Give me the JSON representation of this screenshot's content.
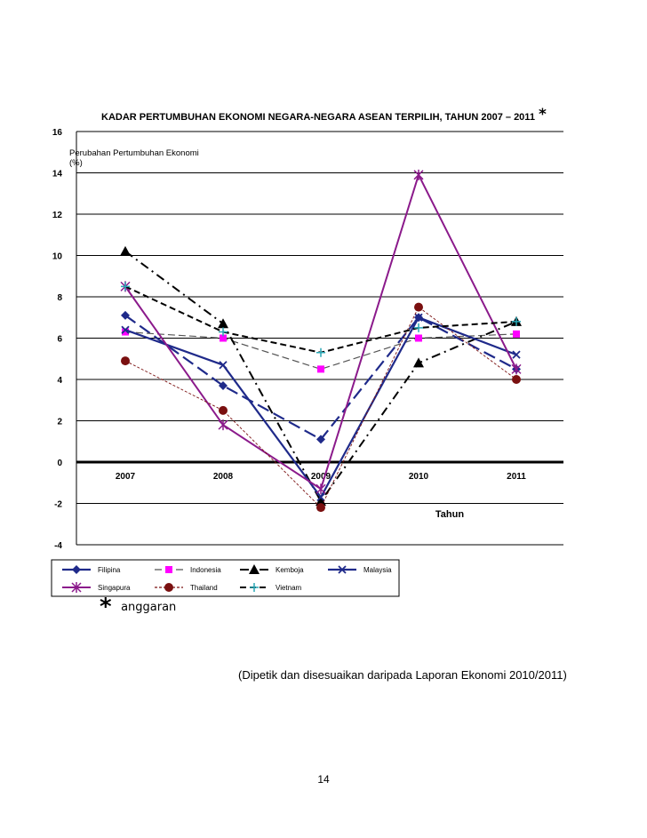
{
  "chart_data": {
    "type": "line",
    "title": "KADAR PERTUMBUHAN EKONOMI NEGARA-NEGARA ASEAN TERPILIH, TAHUN 2007 – 2011",
    "title_mark": "*",
    "ylabel_line1": "Perubahan Pertumbuhan Ekonomi",
    "ylabel_line2": "(%)",
    "xlabel": "Tahun",
    "ylim": [
      -4,
      16
    ],
    "yticks": [
      -4,
      -2,
      0,
      2,
      4,
      6,
      8,
      10,
      12,
      14,
      16
    ],
    "categories": [
      "2007",
      "2008",
      "2009",
      "2010",
      "2011"
    ],
    "grid": true,
    "legend_position": "bottom",
    "series": [
      {
        "name": "Filipina",
        "values": [
          7.1,
          3.7,
          1.1,
          7.0,
          4.5
        ],
        "color": "#1f2a8a",
        "dash": "14,6",
        "marker": "diamond",
        "width": 2.2
      },
      {
        "name": "Indonesia",
        "values": [
          6.3,
          6.0,
          4.5,
          6.0,
          6.2
        ],
        "color": "#555555",
        "dash": "8,4",
        "marker": "square",
        "marker_color": "#ff00ff",
        "width": 1.2
      },
      {
        "name": "Kemboja",
        "values": [
          10.2,
          6.7,
          -1.9,
          4.8,
          6.8
        ],
        "color": "#000000",
        "dash": "10,5,2,5",
        "marker": "triangle",
        "width": 2
      },
      {
        "name": "Malaysia",
        "values": [
          6.4,
          4.7,
          -1.7,
          7.0,
          5.2
        ],
        "color": "#1f2a8a",
        "dash": "",
        "marker": "x",
        "width": 2.2
      },
      {
        "name": "Singapura",
        "values": [
          8.5,
          1.8,
          -1.3,
          13.9,
          4.5
        ],
        "color": "#8b1a8b",
        "dash": "",
        "marker": "asterisk",
        "width": 2
      },
      {
        "name": "Thailand",
        "values": [
          4.9,
          2.5,
          -2.2,
          7.5,
          4.0
        ],
        "color": "#7a1010",
        "dash": "3,2",
        "marker": "circle",
        "marker_color": "#7a1010",
        "width": 0.9
      },
      {
        "name": "Vietnam",
        "values": [
          8.5,
          6.3,
          5.3,
          6.5,
          6.8
        ],
        "color": "#000000",
        "dash": "7,4",
        "marker": "plus",
        "marker_color": "#2aa7b5",
        "width": 2
      }
    ]
  },
  "footnote": {
    "mark": "*",
    "text": "anggaran"
  },
  "source": "(Dipetik dan disesuaikan daripada Laporan Ekonomi 2010/2011)",
  "page_number": "14"
}
